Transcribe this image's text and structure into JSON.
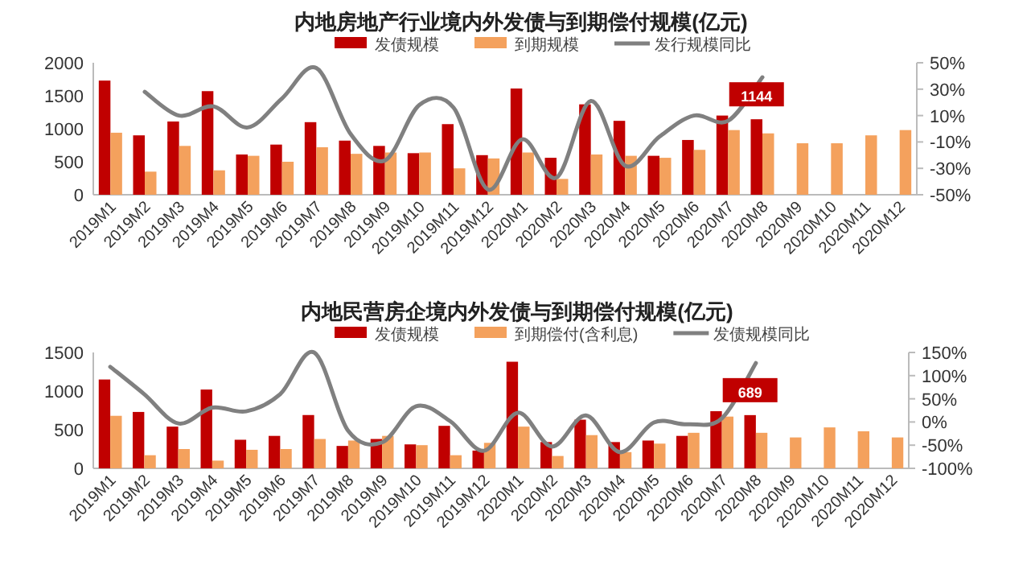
{
  "chart_data": [
    {
      "type": "bar",
      "title": "内地房地产行业境内外发债与到期偿付规模(亿元)",
      "categories": [
        "2019M1",
        "2019M2",
        "2019M3",
        "2019M4",
        "2019M5",
        "2019M6",
        "2019M7",
        "2019M8",
        "2019M9",
        "2019M10",
        "2019M11",
        "2019M12",
        "2020M1",
        "2020M2",
        "2020M3",
        "2020M4",
        "2020M5",
        "2020M6",
        "2020M7",
        "2020M8",
        "2020M9",
        "2020M10",
        "2020M11",
        "2020M12"
      ],
      "series": [
        {
          "name": "发债规模",
          "color": "#c00000",
          "values": [
            1730,
            900,
            1110,
            1570,
            610,
            760,
            1100,
            820,
            740,
            630,
            1070,
            600,
            1610,
            560,
            1370,
            1120,
            590,
            830,
            1200,
            1144,
            null,
            null,
            null,
            null
          ],
          "value_labels": [
            null,
            null,
            null,
            null,
            null,
            null,
            null,
            null,
            null,
            null,
            null,
            null,
            null,
            null,
            null,
            null,
            null,
            null,
            null,
            "1144",
            null,
            null,
            null,
            null
          ]
        },
        {
          "name": "到期规模",
          "color": "#f4a15d",
          "values": [
            940,
            350,
            740,
            370,
            590,
            500,
            720,
            620,
            640,
            640,
            400,
            550,
            640,
            240,
            610,
            590,
            560,
            680,
            980,
            930,
            780,
            780,
            900,
            980
          ]
        },
        {
          "name": "发行规模同比",
          "type": "line",
          "axis": "y2",
          "color": "#808080",
          "values": [
            null,
            28,
            10,
            17,
            1,
            23,
            46,
            -4,
            -24,
            18,
            16,
            -46,
            -8,
            -37,
            21,
            -28,
            -6,
            10,
            6,
            39,
            null,
            null,
            null,
            null
          ]
        }
      ],
      "ylim": [
        0,
        2000
      ],
      "yticks": [
        0,
        500,
        1000,
        1500,
        2000
      ],
      "y2lim": [
        -50,
        50
      ],
      "y2ticks": [
        {
          "value": -50,
          "label": "-50%"
        },
        {
          "value": -30,
          "label": "-30%"
        },
        {
          "value": -10,
          "label": "-10%"
        },
        {
          "value": 10,
          "label": "10%"
        },
        {
          "value": 30,
          "label": "30%"
        },
        {
          "value": 50,
          "label": "50%"
        }
      ],
      "legend": "top",
      "grid": false
    },
    {
      "type": "bar",
      "title": "内地民营房企境内外发债与到期偿付规模(亿元)",
      "categories": [
        "2019M1",
        "2019M2",
        "2019M3",
        "2019M4",
        "2019M5",
        "2019M6",
        "2019M7",
        "2019M8",
        "2019M9",
        "2019M10",
        "2019M11",
        "2019M12",
        "2020M1",
        "2020M2",
        "2020M3",
        "2020M4",
        "2020M5",
        "2020M6",
        "2020M7",
        "2020M8",
        "2020M9",
        "2020M10",
        "2020M11",
        "2020M12"
      ],
      "series": [
        {
          "name": "发债规模",
          "color": "#c00000",
          "values": [
            1150,
            730,
            540,
            1020,
            370,
            420,
            690,
            290,
            380,
            310,
            550,
            230,
            1380,
            340,
            630,
            340,
            360,
            420,
            740,
            689,
            null,
            null,
            null,
            null
          ],
          "value_labels": [
            null,
            null,
            null,
            null,
            null,
            null,
            null,
            null,
            null,
            null,
            null,
            null,
            null,
            null,
            null,
            null,
            null,
            null,
            null,
            "689",
            null,
            null,
            null,
            null
          ]
        },
        {
          "name": "到期偿付(含利息)",
          "color": "#f4a15d",
          "values": [
            680,
            170,
            250,
            100,
            240,
            250,
            380,
            360,
            420,
            300,
            170,
            330,
            540,
            160,
            430,
            210,
            320,
            460,
            670,
            460,
            400,
            530,
            480,
            400
          ]
        },
        {
          "name": "发债规模同比",
          "type": "line",
          "axis": "y2",
          "color": "#808080",
          "values": [
            119,
            60,
            -3,
            31,
            23,
            60,
            150,
            -19,
            -44,
            34,
            2,
            -62,
            20,
            -53,
            14,
            -65,
            -1,
            -5,
            8,
            127,
            null,
            null,
            null,
            null
          ]
        }
      ],
      "ylim": [
        0,
        1500
      ],
      "yticks": [
        0,
        500,
        1000,
        1500
      ],
      "y2lim": [
        -100,
        150
      ],
      "y2ticks": [
        {
          "value": -100,
          "label": "-100%"
        },
        {
          "value": -50,
          "label": "-50%"
        },
        {
          "value": 0,
          "label": "0%"
        },
        {
          "value": 50,
          "label": "50%"
        },
        {
          "value": 100,
          "label": "100%"
        },
        {
          "value": 150,
          "label": "150%"
        }
      ],
      "legend": "top",
      "grid": false
    }
  ]
}
